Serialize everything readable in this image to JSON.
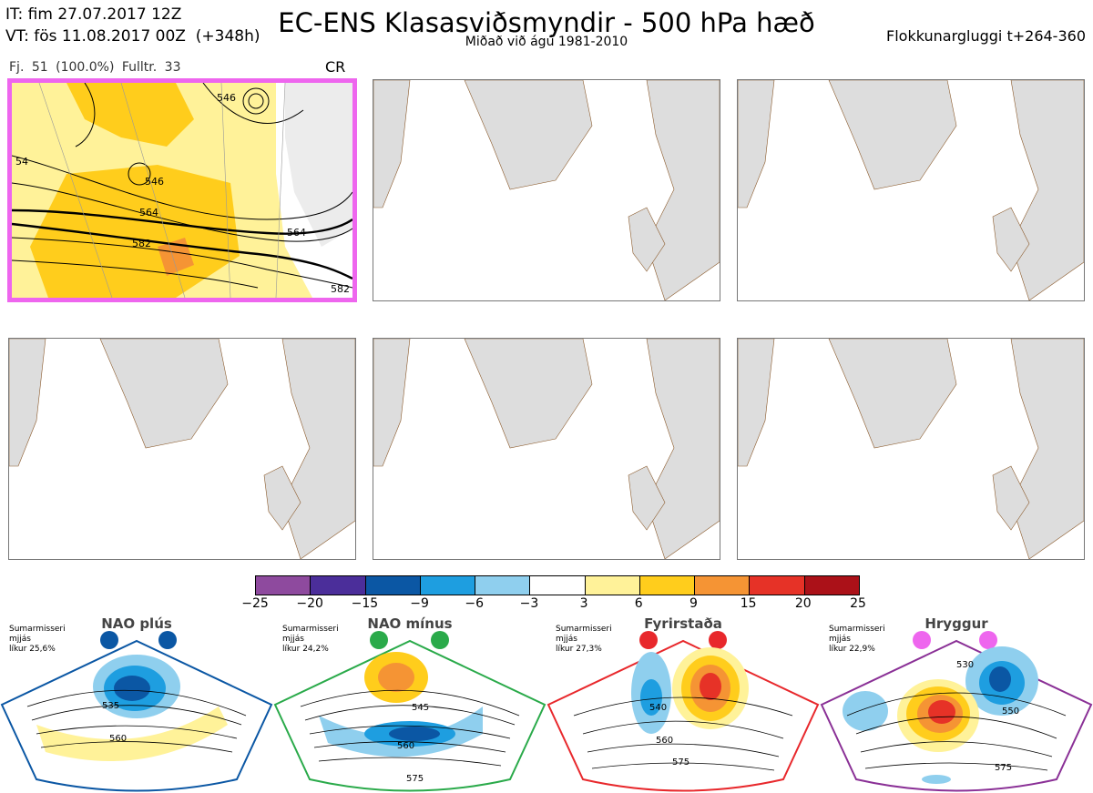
{
  "header": {
    "it_line": "IT: fim 27.07.2017 12Z",
    "vt_line": "VT: fös 11.08.2017 00Z  (+348h)",
    "title": "EC-ENS Klasasviðsmyndir - 500 hPa hæð",
    "subtitle": "Miðað við ágú 1981-2010",
    "window": "Flokkunargluggi t+264-360"
  },
  "active_panel": {
    "info": "Fj. 51 (100.0%)  Fulltr. 33",
    "tag": "CR",
    "contour_labels": [
      "546",
      "546",
      "564",
      "564",
      "582",
      "582",
      "54"
    ]
  },
  "colorbar": {
    "colors": [
      "#8e4a9e",
      "#4b2e9a",
      "#0b57a4",
      "#1e9ee0",
      "#8fcfee",
      "#ffffff",
      "#fff299",
      "#ffcd1c",
      "#f59434",
      "#e63227",
      "#ab1118"
    ],
    "ticks": [
      "−25",
      "−20",
      "−15",
      "−9",
      "−6",
      "−3",
      "3",
      "6",
      "9",
      "15",
      "20",
      "25"
    ]
  },
  "regimes": [
    {
      "title": "NAO plús",
      "note": "Sumarmisseri\nmjjás\nlíkur 25,6%",
      "color": "#0b57a4",
      "labels": [
        "535",
        "560"
      ]
    },
    {
      "title": "NAO mínus",
      "note": "Sumarmisseri\nmjjás\nlíkur 24,2%",
      "color": "#2aaa4a",
      "labels": [
        "545",
        "560",
        "575"
      ]
    },
    {
      "title": "Fyrirstaða",
      "note": "Sumarmisseri\nmjjás\nlíkur 27,3%",
      "color": "#e8282c",
      "labels": [
        "540",
        "560",
        "575"
      ]
    },
    {
      "title": "Hryggur",
      "note": "Sumarmisseri\nmjjás\nlíkur 22,9%",
      "color": "#8a3096",
      "labels": [
        "530",
        "550",
        "575"
      ]
    }
  ]
}
